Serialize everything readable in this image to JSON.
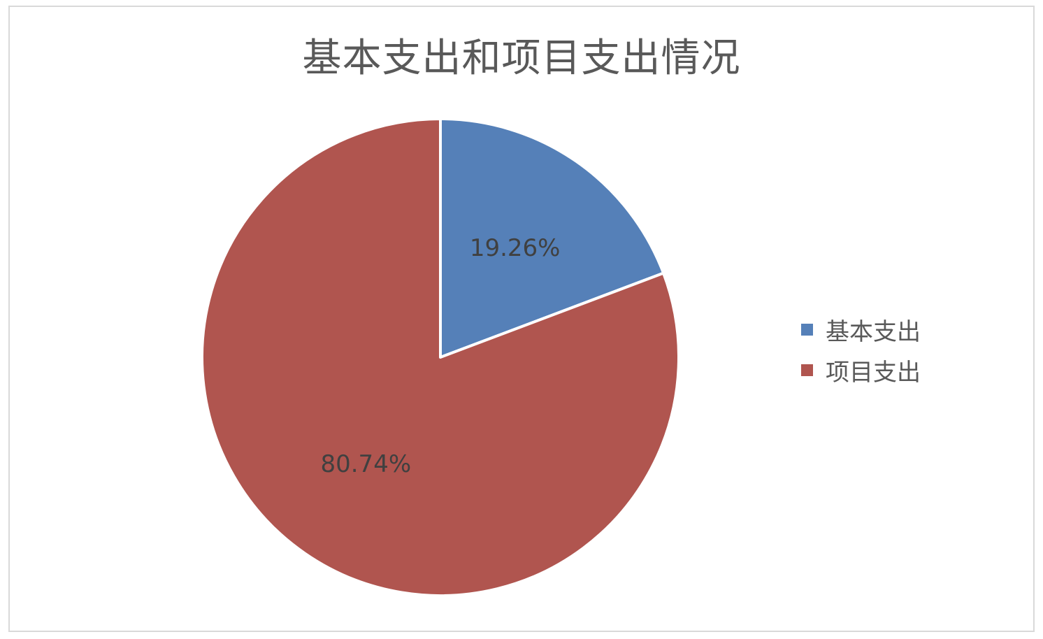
{
  "chart_data": {
    "type": "pie",
    "title": "基本支出和项目支出情况",
    "categories": [
      "基本支出",
      "项目支出"
    ],
    "values": [
      19.26,
      80.74
    ],
    "data_labels": [
      "19.26%",
      "80.74%"
    ],
    "colors": [
      "#5580b8",
      "#b0554f"
    ],
    "legend_position": "right"
  }
}
